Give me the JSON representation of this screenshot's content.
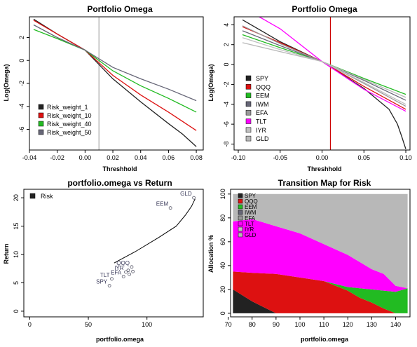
{
  "colors": {
    "Risk_weight_1": "#222222",
    "Risk_weight_10": "#dd1111",
    "Risk_weight_40": "#22bb22",
    "Risk_weight_50": "#666677",
    "SPY": "#222222",
    "QQQ": "#dd1111",
    "EEM": "#22bb22",
    "IWM": "#666677",
    "EFA": "#999999",
    "TLT": "#ff00ff",
    "IYR": "#c0c0c0",
    "GLD": "#b8b8b8"
  },
  "chart_data": [
    {
      "id": "p1",
      "type": "line",
      "title": "Portfolio Omega",
      "xlabel": "Threshhold",
      "ylabel": "Log(Omega)",
      "xlim": [
        -0.04,
        0.085
      ],
      "ylim": [
        -7.8,
        3.8
      ],
      "xticks": [
        -0.04,
        -0.02,
        0.0,
        0.02,
        0.04,
        0.06,
        0.08
      ],
      "xtick_labels": [
        "-0.04",
        "-0.02",
        "0.00",
        "0.02",
        "0.04",
        "0.06",
        "0.08"
      ],
      "yticks": [
        -6,
        -4,
        -2,
        0,
        2
      ],
      "ytick_labels": [
        "-6",
        "-4",
        "-2",
        "0",
        "2"
      ],
      "vline": {
        "x": 0.01,
        "color": "#aaaaaa"
      },
      "legend": "bottom-left",
      "series": [
        {
          "name": "Risk_weight_1",
          "x": [
            -0.037,
            -0.02,
            0.0,
            0.02,
            0.04,
            0.06,
            0.07,
            0.08
          ],
          "y": [
            3.6,
            2.3,
            0.9,
            -1.6,
            -3.6,
            -5.5,
            -6.4,
            -7.5
          ]
        },
        {
          "name": "Risk_weight_10",
          "x": [
            -0.037,
            -0.02,
            0.0,
            0.02,
            0.04,
            0.06,
            0.08
          ],
          "y": [
            3.5,
            2.3,
            0.9,
            -1.3,
            -3.0,
            -4.5,
            -6.1
          ]
        },
        {
          "name": "Risk_weight_40",
          "x": [
            -0.037,
            -0.02,
            0.0,
            0.02,
            0.04,
            0.06,
            0.08
          ],
          "y": [
            2.7,
            1.9,
            0.9,
            -0.9,
            -2.2,
            -3.3,
            -4.5
          ]
        },
        {
          "name": "Risk_weight_50",
          "x": [
            -0.037,
            -0.02,
            0.0,
            0.02,
            0.04,
            0.06,
            0.08
          ],
          "y": [
            3.1,
            2.0,
            0.9,
            -0.6,
            -1.6,
            -2.5,
            -3.5
          ]
        }
      ]
    },
    {
      "id": "p2",
      "type": "line",
      "title": "Portfolio Omega",
      "xlabel": "Threshhold",
      "ylabel": "Log(Omega)",
      "xlim": [
        -0.105,
        0.105
      ],
      "ylim": [
        -8.6,
        4.8
      ],
      "xticks": [
        -0.1,
        -0.05,
        0.0,
        0.05,
        0.1
      ],
      "xtick_labels": [
        "-0.10",
        "-0.05",
        "0.00",
        "0.05",
        "0.10"
      ],
      "yticks": [
        -8,
        -6,
        -4,
        -2,
        0,
        2,
        4
      ],
      "ytick_labels": [
        "-8",
        "-6",
        "-4",
        "-2",
        "0",
        "2",
        "4"
      ],
      "vline": {
        "x": 0.01,
        "color": "#cc0000"
      },
      "legend": "bottom-left",
      "series": [
        {
          "name": "SPY",
          "x": [
            -0.095,
            -0.05,
            0.0,
            0.05,
            0.08,
            0.09,
            0.095,
            0.1
          ],
          "y": [
            4.5,
            2.3,
            0.3,
            -2.4,
            -4.5,
            -6.0,
            -7.2,
            -8.5
          ]
        },
        {
          "name": "QQQ",
          "x": [
            -0.095,
            -0.05,
            0.0,
            0.05,
            0.1
          ],
          "y": [
            3.8,
            2.2,
            0.3,
            -2.2,
            -4.5
          ]
        },
        {
          "name": "EEM",
          "x": [
            -0.095,
            -0.05,
            0.0,
            0.05,
            0.1
          ],
          "y": [
            3.0,
            1.7,
            0.3,
            -1.4,
            -3.0
          ]
        },
        {
          "name": "IWM",
          "x": [
            -0.095,
            -0.05,
            0.0,
            0.05,
            0.1
          ],
          "y": [
            3.4,
            1.9,
            0.3,
            -1.6,
            -3.6
          ]
        },
        {
          "name": "EFA",
          "x": [
            -0.095,
            -0.05,
            0.0,
            0.05,
            0.1
          ],
          "y": [
            3.9,
            2.1,
            0.3,
            -1.9,
            -4.2
          ]
        },
        {
          "name": "TLT",
          "x": [
            -0.075,
            -0.05,
            0.0,
            0.05,
            0.1
          ],
          "y": [
            4.8,
            3.6,
            0.3,
            -2.5,
            -4.7
          ]
        },
        {
          "name": "IYR",
          "x": [
            -0.095,
            -0.05,
            0.0,
            0.05,
            0.1
          ],
          "y": [
            2.7,
            1.5,
            0.3,
            -1.8,
            -4.0
          ]
        },
        {
          "name": "GLD",
          "x": [
            -0.095,
            -0.05,
            0.0,
            0.05,
            0.1
          ],
          "y": [
            2.2,
            1.3,
            0.3,
            -1.5,
            -3.3
          ]
        }
      ]
    },
    {
      "id": "p3",
      "type": "scatter",
      "title": "portfolio.omega vs Return",
      "xlabel": "portfolio.omega",
      "ylabel": "Return",
      "xlim": [
        -5,
        148
      ],
      "ylim": [
        -1,
        21.5
      ],
      "xticks": [
        0,
        50,
        100
      ],
      "xtick_labels": [
        "0",
        "50",
        "100"
      ],
      "yticks": [
        0,
        5,
        10,
        15,
        20
      ],
      "ytick_labels": [
        "0",
        "5",
        "10",
        "15",
        "20"
      ],
      "legend": "top-left",
      "legend_entries": [
        "Risk"
      ],
      "frontier": {
        "x": [
          72,
          90,
          110,
          125,
          133,
          138,
          141
        ],
        "y": [
          8.5,
          10.5,
          13.0,
          15.0,
          17.0,
          18.5,
          19.8
        ]
      },
      "points": [
        {
          "label": "GLD",
          "x": 140,
          "y": 20
        },
        {
          "label": "EEM",
          "x": 120,
          "y": 18.2
        },
        {
          "label": "QQQ",
          "x": 87,
          "y": 7.8
        },
        {
          "label": "",
          "x": 84,
          "y": 7.2
        },
        {
          "label": "",
          "x": 88,
          "y": 7.0
        },
        {
          "label": "IYR",
          "x": 82,
          "y": 6.9
        },
        {
          "label": "",
          "x": 85,
          "y": 6.5
        },
        {
          "label": "EFA",
          "x": 80,
          "y": 6.1
        },
        {
          "label": "TLT",
          "x": 70,
          "y": 5.7
        },
        {
          "label": "SPY",
          "x": 68,
          "y": 4.5
        }
      ]
    },
    {
      "id": "p4",
      "type": "area",
      "title": "Transition Map for Risk",
      "xlabel": "portfolio.omega",
      "ylabel": "Allocation %",
      "xlim": [
        71,
        146
      ],
      "ylim": [
        -3,
        104
      ],
      "xticks": [
        70,
        80,
        90,
        100,
        110,
        120,
        130,
        140
      ],
      "xtick_labels": [
        "70",
        "80",
        "90",
        "100",
        "110",
        "120",
        "130",
        "140"
      ],
      "yticks": [
        0,
        20,
        40,
        60,
        80,
        100
      ],
      "ytick_labels": [
        "0",
        "20",
        "40",
        "60",
        "80",
        "100"
      ],
      "x": [
        72,
        80,
        90,
        100,
        110,
        120,
        125,
        130,
        135,
        140,
        145
      ],
      "series": [
        {
          "name": "SPY",
          "values": [
            20,
            10,
            0,
            0,
            0,
            0,
            0,
            0,
            0,
            0,
            0
          ]
        },
        {
          "name": "QQQ",
          "values": [
            15,
            24,
            33,
            30,
            27,
            19,
            13,
            9,
            4,
            0,
            0
          ]
        },
        {
          "name": "EEM",
          "values": [
            0,
            0,
            0,
            0,
            0,
            3,
            8,
            11,
            15,
            18,
            21
          ]
        },
        {
          "name": "IWM",
          "values": [
            0,
            0,
            0,
            0,
            0,
            0,
            0,
            0,
            0,
            0,
            0
          ]
        },
        {
          "name": "EFA",
          "values": [
            0,
            0,
            0,
            0,
            0,
            0,
            0,
            0,
            0,
            0,
            0
          ]
        },
        {
          "name": "TLT",
          "values": [
            42,
            45,
            40,
            37,
            31,
            27,
            22,
            17,
            14,
            5,
            0
          ]
        },
        {
          "name": "IYR",
          "values": [
            0,
            0,
            0,
            0,
            0,
            0,
            0,
            0,
            0,
            0,
            0
          ]
        },
        {
          "name": "GLD",
          "values": [
            23,
            21,
            27,
            33,
            42,
            51,
            57,
            63,
            67,
            77,
            79
          ]
        }
      ],
      "legend": "top-left"
    }
  ]
}
